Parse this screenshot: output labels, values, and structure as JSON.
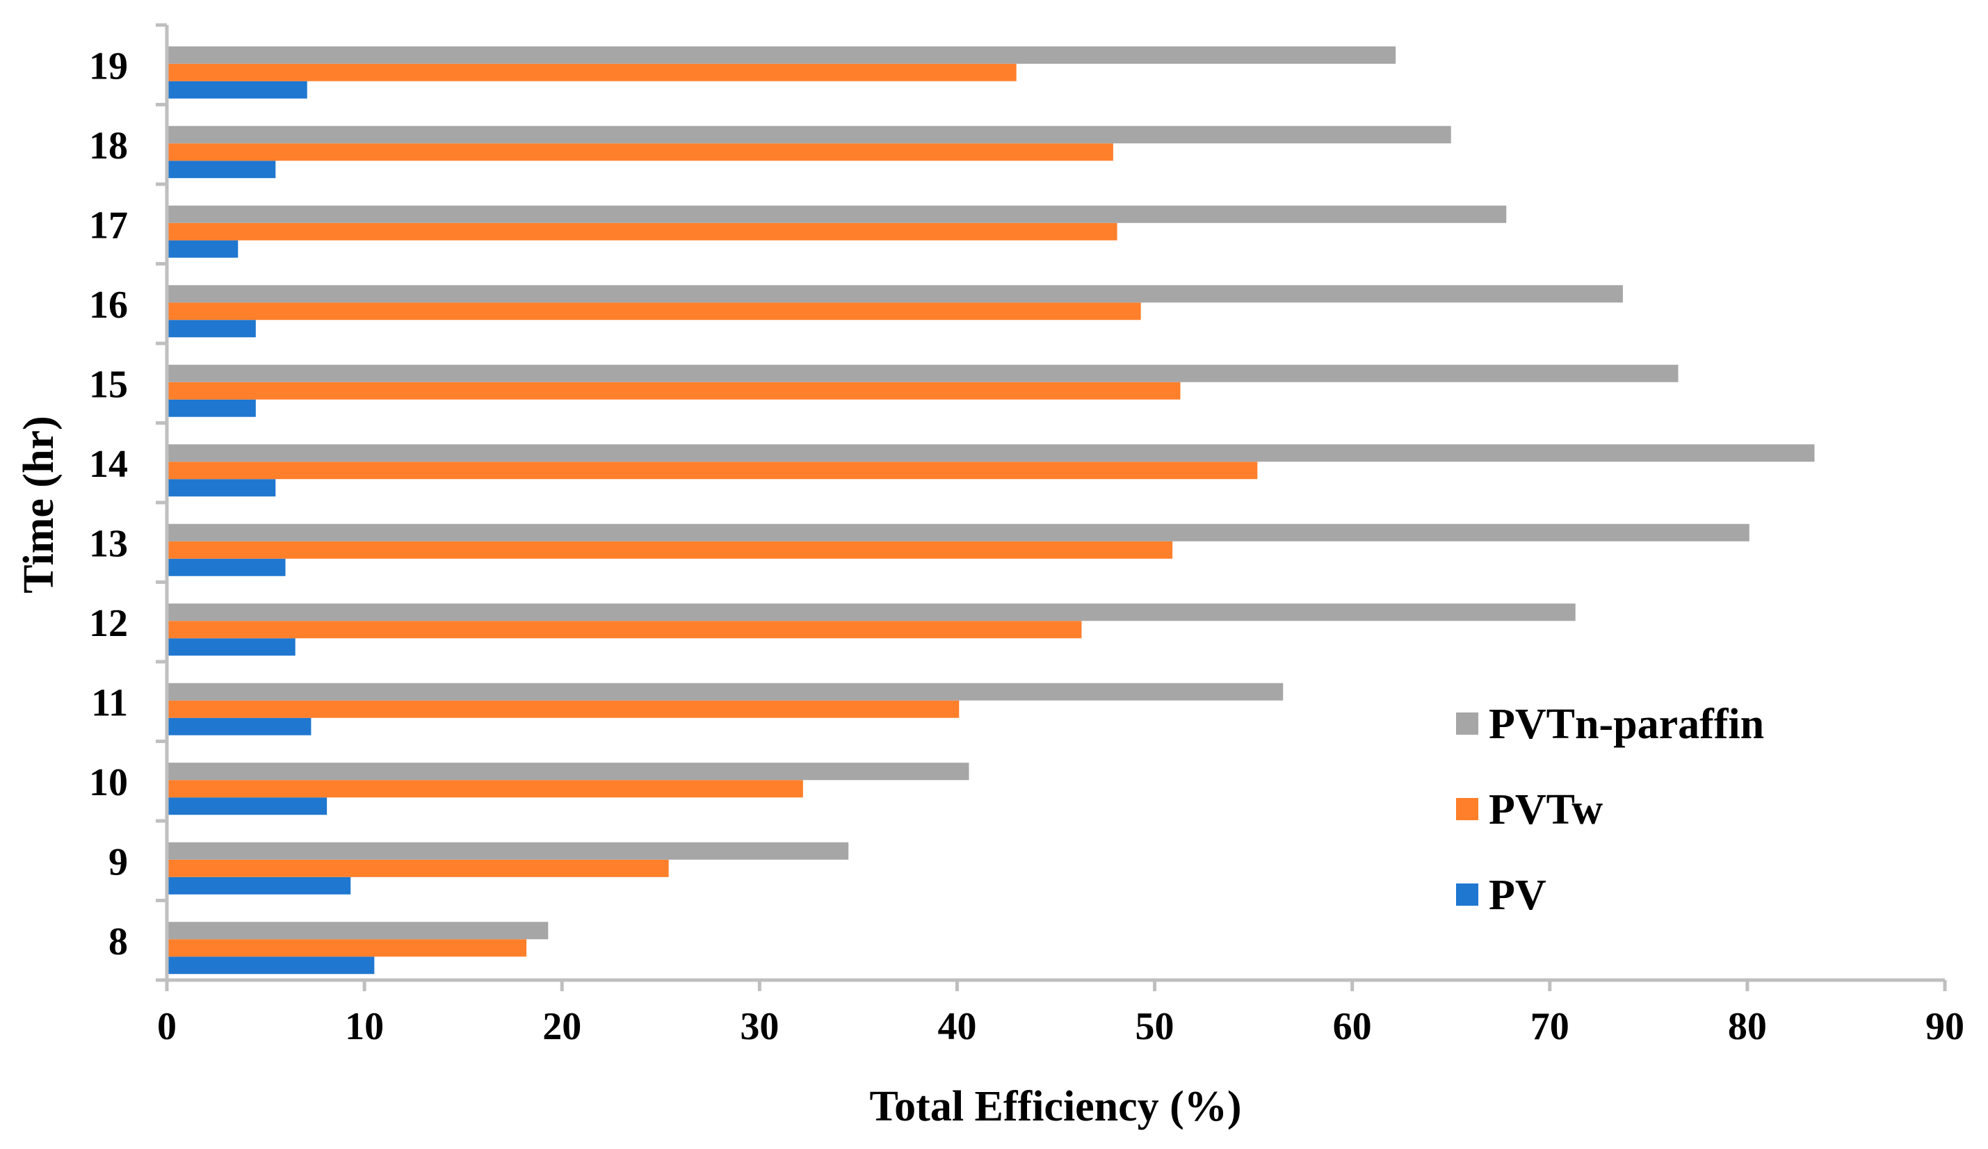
{
  "chart_data": {
    "type": "bar",
    "orientation": "horizontal",
    "title": "",
    "xlabel": "Total Efficiency (%)",
    "ylabel": "Time (hr)",
    "xlim": [
      0,
      90
    ],
    "x_ticks": [
      "0",
      "10",
      "20",
      "30",
      "40",
      "50",
      "60",
      "70",
      "80",
      "90"
    ],
    "categories": [
      "8",
      "9",
      "10",
      "11",
      "12",
      "13",
      "14",
      "15",
      "16",
      "17",
      "18",
      "19"
    ],
    "series": [
      {
        "name": "PV",
        "color": "#1f77d0",
        "values": [
          10.5,
          9.3,
          8.1,
          7.3,
          6.5,
          6.0,
          5.5,
          4.5,
          4.5,
          3.6,
          5.5,
          7.1
        ]
      },
      {
        "name": "PVTw",
        "color": "#ff7f2a",
        "values": [
          18.2,
          25.4,
          32.2,
          40.1,
          46.3,
          50.9,
          55.2,
          51.3,
          49.3,
          48.1,
          47.9,
          43.0
        ]
      },
      {
        "name": "PVTn-paraffin",
        "color": "#a6a6a6",
        "values": [
          19.3,
          34.5,
          40.6,
          56.5,
          71.3,
          80.1,
          83.4,
          76.5,
          73.7,
          67.8,
          65.0,
          62.2
        ]
      }
    ],
    "legend": {
      "position": "right",
      "order": [
        "PVTn-paraffin",
        "PVTw",
        "PV"
      ]
    },
    "grid": false
  }
}
